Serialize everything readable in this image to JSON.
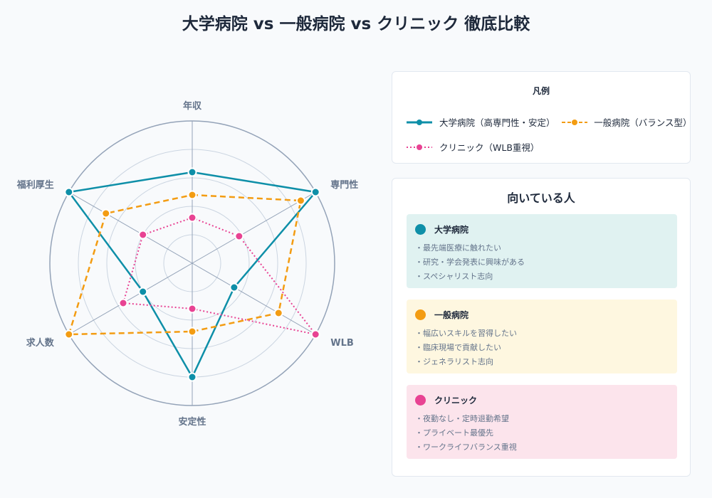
{
  "title": "大学病院 vs 一般病院 vs クリニック 徹底比較",
  "colors": {
    "university": "#0e8fa8",
    "general": "#f39c12",
    "clinic": "#e84393",
    "grid": "#94a3b8"
  },
  "chart_data": {
    "type": "radar",
    "axes": [
      "年収",
      "専門性",
      "WLB",
      "安定性",
      "求人数",
      "福利厚生"
    ],
    "rlim": [
      0,
      5
    ],
    "grid_levels": 5,
    "series": [
      {
        "name": "大学病院（高専門性・安定）",
        "values": [
          3.2,
          5.0,
          1.7,
          4.0,
          2.0,
          5.0
        ]
      },
      {
        "name": "一般病院（バランス型）",
        "values": [
          2.4,
          4.4,
          3.5,
          2.4,
          5.0,
          3.5
        ]
      },
      {
        "name": "クリニック（WLB重視）",
        "values": [
          1.6,
          1.9,
          5.0,
          1.6,
          2.8,
          2.0
        ]
      }
    ]
  },
  "legend": {
    "title": "凡例",
    "items": [
      "大学病院（高専門性・安定）",
      "一般病院（バランス型）",
      "クリニック（WLB重視）"
    ]
  },
  "who": {
    "title": "向いている人",
    "groups": [
      {
        "name": "大学病院",
        "points": [
          "・最先端医療に触れたい",
          "・研究・学会発表に興味がある",
          "・スペシャリスト志向"
        ]
      },
      {
        "name": "一般病院",
        "points": [
          "・幅広いスキルを習得したい",
          "・臨床現場で貢献したい",
          "・ジェネラリスト志向"
        ]
      },
      {
        "name": "クリニック",
        "points": [
          "・夜勤なし・定時退勤希望",
          "・プライベート最優先",
          "・ワークライフバランス重視"
        ]
      }
    ]
  }
}
